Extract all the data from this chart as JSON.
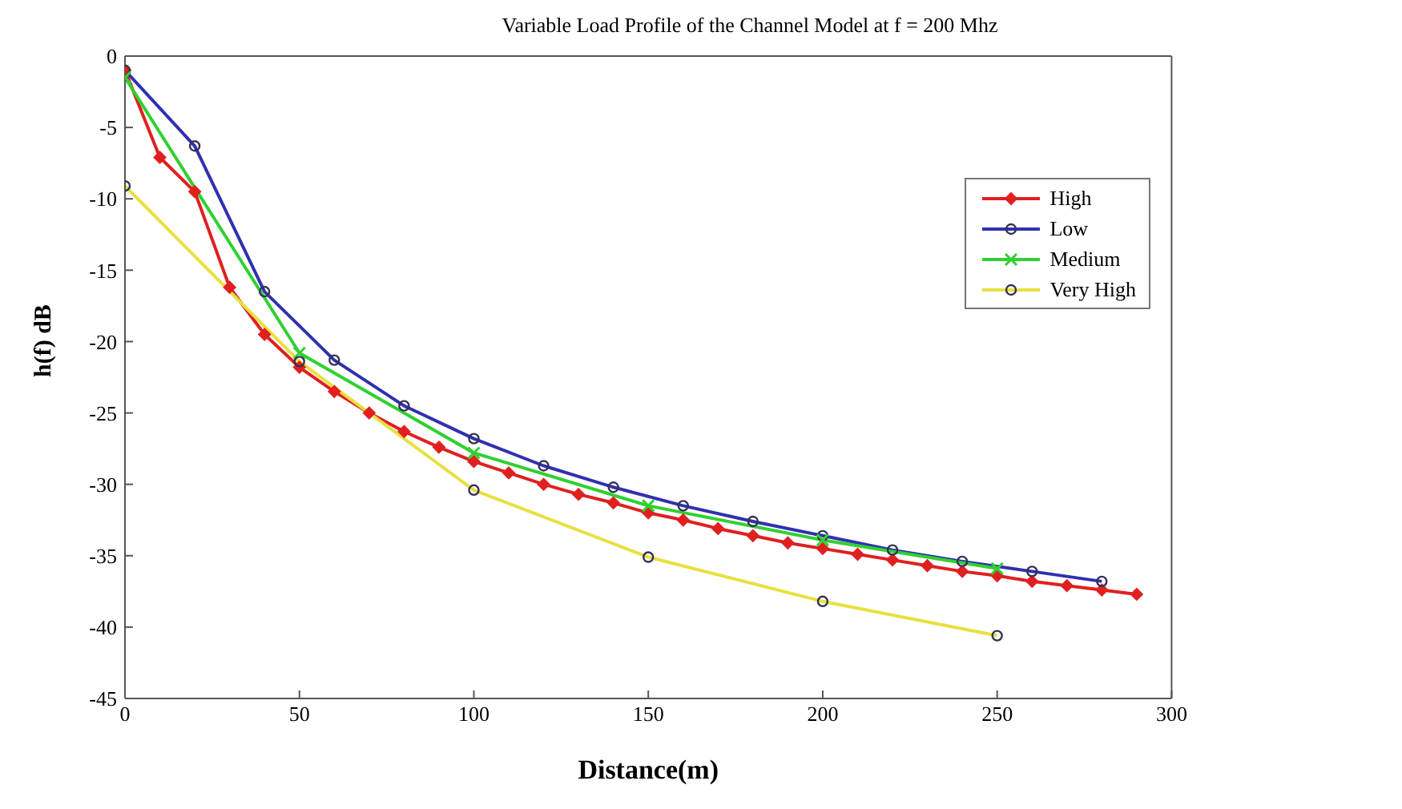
{
  "chart_data": {
    "type": "line",
    "title": "Variable Load Profile of the Channel Model at f = 200 Mhz",
    "xlabel": "Distance(m)",
    "ylabel": "h(f) dB",
    "xlim": [
      0,
      300
    ],
    "xticks": [
      0,
      50,
      100,
      150,
      200,
      250,
      300
    ],
    "ylim": [
      -45,
      0
    ],
    "yticks": [
      -45,
      -40,
      -35,
      -30,
      -25,
      -20,
      -15,
      -10,
      -5,
      0
    ],
    "grid": false,
    "legend": "top right",
    "series": [
      {
        "name": "High",
        "color": "#e02020",
        "marker": "diamond",
        "x": [
          0,
          10,
          20,
          30,
          40,
          50,
          60,
          70,
          80,
          90,
          100,
          110,
          120,
          130,
          140,
          150,
          160,
          170,
          180,
          190,
          200,
          210,
          220,
          230,
          240,
          250,
          260,
          270,
          280,
          290
        ],
        "values": [
          -1,
          -7.1,
          -9.5,
          -16.2,
          -19.5,
          -21.8,
          -23.5,
          -25,
          -26.3,
          -27.4,
          -28.4,
          -29.2,
          -30,
          -30.7,
          -31.3,
          -32,
          -32.5,
          -33.1,
          -33.6,
          -34.1,
          -34.5,
          -34.9,
          -35.3,
          -35.7,
          -36.1,
          -36.4,
          -36.8,
          -37.1,
          -37.4,
          -37.7
        ]
      },
      {
        "name": "Low",
        "color": "#3030b0",
        "marker": "circle",
        "x": [
          0,
          20,
          40,
          60,
          80,
          100,
          120,
          140,
          160,
          180,
          200,
          220,
          240,
          260,
          280
        ],
        "values": [
          -1,
          -6.3,
          -16.5,
          -21.3,
          -24.5,
          -26.8,
          -28.7,
          -30.2,
          -31.5,
          -32.6,
          -33.6,
          -34.6,
          -35.4,
          -36.1,
          -36.8
        ]
      },
      {
        "name": "Medium",
        "color": "#30d030",
        "marker": "cross",
        "x": [
          0,
          50,
          100,
          150,
          200,
          250
        ],
        "values": [
          -1.5,
          -20.8,
          -27.8,
          -31.5,
          -33.9,
          -35.9
        ]
      },
      {
        "name": "Very High",
        "color": "#e8e040",
        "marker": "circle",
        "x": [
          0,
          50,
          100,
          150,
          200,
          250
        ],
        "values": [
          -9.1,
          -21.4,
          -30.4,
          -35.1,
          -38.2,
          -40.6
        ]
      }
    ]
  }
}
